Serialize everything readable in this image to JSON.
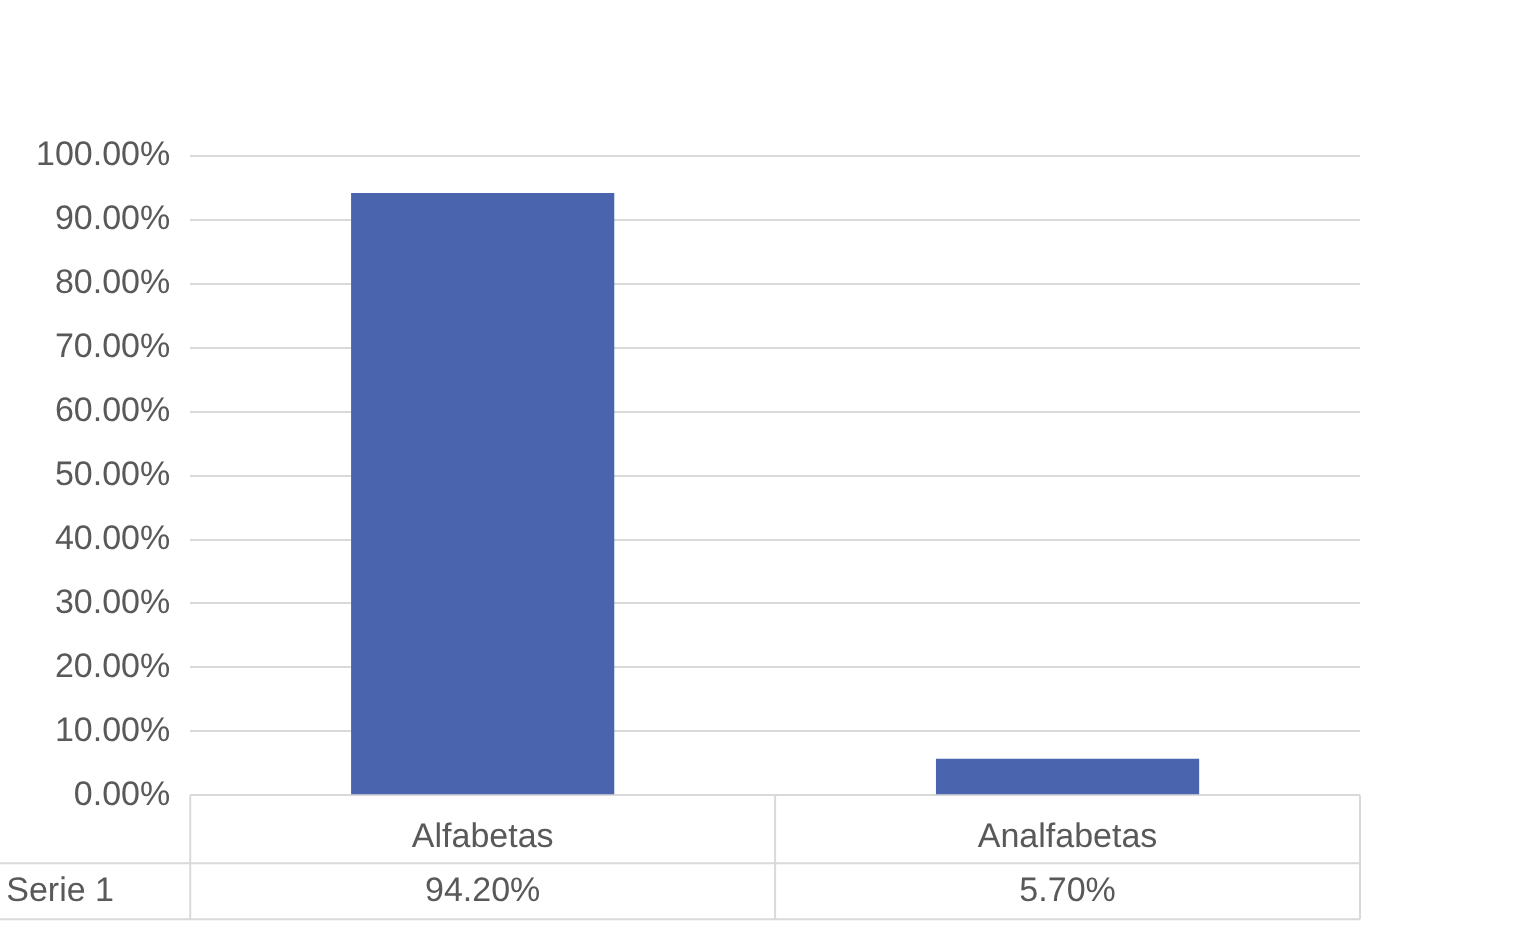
{
  "chart_data": {
    "type": "bar",
    "categories": [
      "Alfabetas",
      "Analfabetas"
    ],
    "series": [
      {
        "name": "Serie 1",
        "color": "#4a65ad",
        "values": [
          94.2,
          5.7
        ],
        "value_labels": [
          "94.20%",
          "5.70%"
        ]
      }
    ],
    "ylim": [
      0,
      100
    ],
    "yticks": [
      {
        "value": 0,
        "label": "0.00%"
      },
      {
        "value": 10,
        "label": "10.00%"
      },
      {
        "value": 20,
        "label": "20.00%"
      },
      {
        "value": 30,
        "label": "30.00%"
      },
      {
        "value": 40,
        "label": "40.00%"
      },
      {
        "value": 50,
        "label": "50.00%"
      },
      {
        "value": 60,
        "label": "60.00%"
      },
      {
        "value": 70,
        "label": "70.00%"
      },
      {
        "value": 80,
        "label": "80.00%"
      },
      {
        "value": 90,
        "label": "90.00%"
      },
      {
        "value": 100,
        "label": "100.00%"
      }
    ],
    "grid": "y",
    "legend": "bottom"
  }
}
